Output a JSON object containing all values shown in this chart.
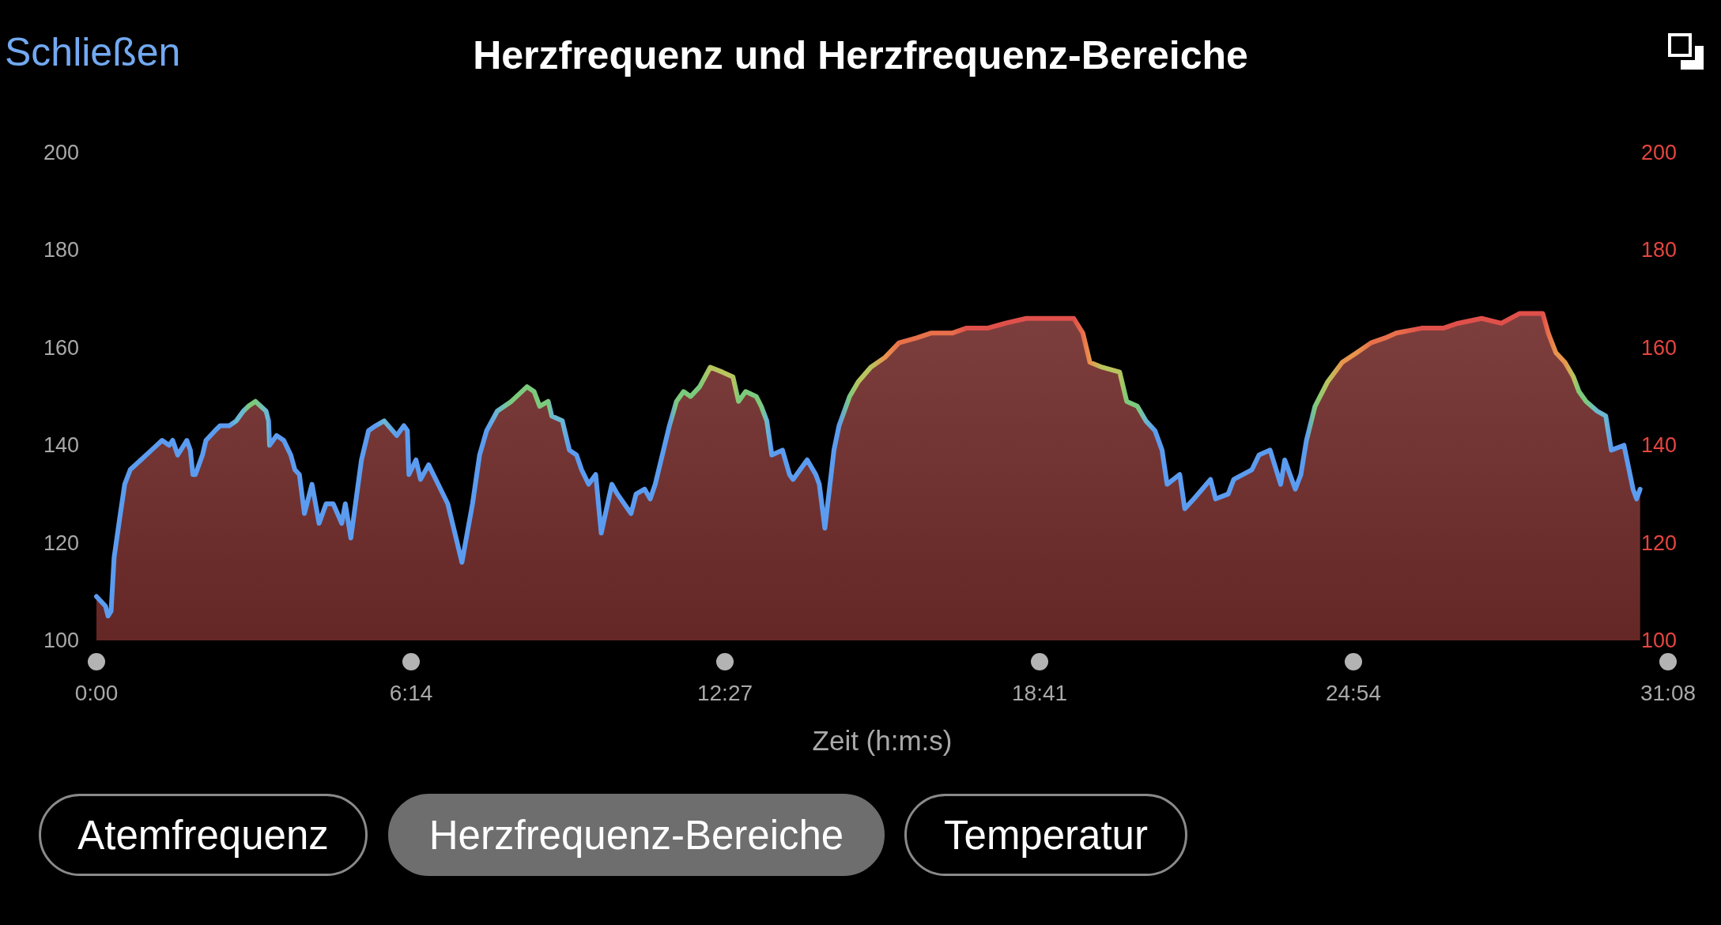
{
  "chart_data": {
    "type": "area",
    "title": "Herzfrequenz und Herzfrequenz-Bereiche",
    "xlabel": "Zeit (h:m:s)",
    "x": [
      0,
      0.18,
      0.23,
      0.29,
      0.35,
      0.46,
      0.56,
      0.67,
      0.88,
      1.09,
      1.3,
      1.44,
      1.51,
      1.61,
      1.79,
      1.86,
      1.91,
      1.96,
      2.1,
      2.17,
      2.35,
      2.45,
      2.63,
      2.77,
      2.91,
      3.01,
      3.15,
      3.36,
      3.41,
      3.43,
      3.57,
      3.71,
      3.85,
      3.93,
      4.02,
      4.12,
      4.27,
      4.41,
      4.55,
      4.69,
      4.86,
      4.93,
      5.04,
      5.25,
      5.39,
      5.53,
      5.7,
      5.95,
      6.09,
      6.16,
      6.19,
      6.33,
      6.42,
      6.58,
      6.96,
      7.1,
      7.24,
      7.45,
      7.59,
      7.73,
      7.94,
      8.22,
      8.53,
      8.67,
      8.78,
      8.95,
      9.02,
      9.23,
      9.37,
      9.51,
      9.61,
      9.75,
      9.89,
      10,
      10.21,
      10.32,
      10.59,
      10.69,
      10.86,
      10.97,
      11.07,
      11.21,
      11.35,
      11.49,
      11.63,
      11.77,
      11.95,
      12.16,
      12.4,
      12.61,
      12.72,
      12.86,
      13.07,
      13.17,
      13.28,
      13.38,
      13.59,
      13.73,
      13.8,
      14.08,
      14.25,
      14.32,
      14.43,
      14.61,
      14.71,
      14.92,
      15.09,
      15.34,
      15.62,
      15.9,
      16.25,
      16.53,
      16.95,
      17.23,
      17.65,
      18,
      18.42,
      18.91,
      19.36,
      19.54,
      19.68,
      19.92,
      20.27,
      20.41,
      20.62,
      20.79,
      20.97,
      21.11,
      21.21,
      21.46,
      21.56,
      21.74,
      22.07,
      22.17,
      22.42,
      22.53,
      22.89,
      23.03,
      23.25,
      23.46,
      23.54,
      23.75,
      23.86,
      23.97,
      24.14,
      24.39,
      24.68,
      24.97,
      25.25,
      25.53,
      25.75,
      26.25,
      26.68,
      26.97,
      27.44,
      27.83,
      28.19,
      28.65,
      28.76,
      28.91,
      29.09,
      29.26,
      29.37,
      29.51,
      29.73,
      29.9,
      30.01,
      30.26,
      30.44,
      30.51,
      30.58
    ],
    "xlim": [
      0,
      31.1333
    ],
    "xticks": [
      {
        "value": 0,
        "label": "0:00"
      },
      {
        "value": 6.2333,
        "label": "6:14"
      },
      {
        "value": 12.45,
        "label": "12:27"
      },
      {
        "value": 18.6833,
        "label": "18:41"
      },
      {
        "value": 24.9,
        "label": "24:54"
      },
      {
        "value": 31.1333,
        "label": "31:08"
      }
    ],
    "ylim": [
      100,
      200
    ],
    "yticks": [
      100,
      120,
      140,
      160,
      180,
      200
    ],
    "y2lim": [
      100,
      200
    ],
    "y2ticks": [
      100,
      120,
      140,
      160,
      180,
      200
    ],
    "series": [
      {
        "color": "#6e2a28",
        "values": [
          109,
          107,
          105,
          106,
          117,
          125,
          132,
          135,
          137,
          139,
          141,
          140,
          141,
          138,
          141,
          139,
          134,
          134,
          138,
          141,
          143,
          144,
          144,
          145,
          147,
          148,
          149,
          147,
          145,
          140,
          142,
          141,
          138,
          135,
          134,
          126,
          132,
          124,
          128,
          128,
          124,
          128,
          121,
          137,
          143,
          144,
          145,
          142,
          144,
          143,
          134,
          137,
          133,
          136,
          128,
          122,
          116,
          128,
          138,
          143,
          147,
          149,
          152,
          151,
          148,
          149,
          146,
          145,
          139,
          138,
          135,
          132,
          134,
          122,
          132,
          130,
          126,
          130,
          131,
          129,
          132,
          138,
          144,
          149,
          151,
          150,
          152,
          156,
          155,
          154,
          149,
          151,
          150,
          148,
          145,
          138,
          139,
          134,
          133,
          137,
          134,
          132,
          123,
          139,
          144,
          150,
          153,
          156,
          158,
          161,
          162,
          163,
          163,
          164,
          164,
          165,
          166,
          166,
          166,
          163,
          157,
          156,
          155,
          149,
          148,
          145,
          143,
          139,
          132,
          134,
          127,
          129,
          133,
          129,
          130,
          133,
          135,
          138,
          139,
          132,
          137,
          131,
          134,
          141,
          148,
          153,
          157,
          159,
          161,
          162,
          163,
          164,
          164,
          165,
          166,
          165,
          167,
          167,
          163,
          159,
          157,
          154,
          151,
          149,
          147,
          146,
          139,
          140,
          131,
          129,
          131
        ],
        "colors": [
          "#5b9cf0",
          "#5b9cf0",
          "#5b9cf0",
          "#5b9cf0",
          "#5b9cf0",
          "#5b9cf0",
          "#5b9cf0",
          "#5b9cf0",
          "#5b9cf0",
          "#5b9cf0",
          "#5b9cf0",
          "#5b9cf0",
          "#5b9cf0",
          "#5b9cf0",
          "#5b9cf0",
          "#5b9cf0",
          "#5b9cf0",
          "#5b9cf0",
          "#5b9cf0",
          "#5b9cf0",
          "#5b9cf0",
          "#5b9cf0",
          "#5b9cf0",
          "#6ab8d2",
          "#6ab8d2",
          "#7cca7c",
          "#7cca7c",
          "#6ab8d2",
          "#6ab8d2",
          "#5b9cf0",
          "#5b9cf0",
          "#5b9cf0",
          "#5b9cf0",
          "#5b9cf0",
          "#5b9cf0",
          "#5b9cf0",
          "#5b9cf0",
          "#5b9cf0",
          "#5b9cf0",
          "#5b9cf0",
          "#5b9cf0",
          "#5b9cf0",
          "#5b9cf0",
          "#5b9cf0",
          "#5b9cf0",
          "#5b9cf0",
          "#6ab8d2",
          "#5b9cf0",
          "#5b9cf0",
          "#5b9cf0",
          "#5b9cf0",
          "#5b9cf0",
          "#5b9cf0",
          "#5b9cf0",
          "#5b9cf0",
          "#5b9cf0",
          "#5b9cf0",
          "#5b9cf0",
          "#5b9cf0",
          "#5b9cf0",
          "#6ab8d2",
          "#7cca7c",
          "#7cca7c",
          "#7cca7c",
          "#7cca7c",
          "#7cca7c",
          "#6ab8d2",
          "#6ab8d2",
          "#5b9cf0",
          "#5b9cf0",
          "#5b9cf0",
          "#5b9cf0",
          "#5b9cf0",
          "#5b9cf0",
          "#5b9cf0",
          "#5b9cf0",
          "#5b9cf0",
          "#5b9cf0",
          "#5b9cf0",
          "#5b9cf0",
          "#5b9cf0",
          "#5b9cf0",
          "#5b9cf0",
          "#7cca7c",
          "#7cca7c",
          "#7cca7c",
          "#7cca7c",
          "#b9c45e",
          "#b9c45e",
          "#b9c45e",
          "#7cca7c",
          "#7cca7c",
          "#7cca7c",
          "#7cca7c",
          "#6ab8d2",
          "#5b9cf0",
          "#5b9cf0",
          "#5b9cf0",
          "#5b9cf0",
          "#5b9cf0",
          "#5b9cf0",
          "#5b9cf0",
          "#5b9cf0",
          "#5b9cf0",
          "#5b9cf0",
          "#7cca7c",
          "#b9c45e",
          "#b9c45e",
          "#e8944c",
          "#e8704a",
          "#e8704a",
          "#e8704a",
          "#e8704a",
          "#e0504a",
          "#e0504a",
          "#e0504a",
          "#e0504a",
          "#e0504a",
          "#e0504a",
          "#e8704a",
          "#e8944c",
          "#b9c45e",
          "#b9c45e",
          "#7cca7c",
          "#7cca7c",
          "#6ab8d2",
          "#5b9cf0",
          "#5b9cf0",
          "#5b9cf0",
          "#5b9cf0",
          "#5b9cf0",
          "#5b9cf0",
          "#5b9cf0",
          "#5b9cf0",
          "#5b9cf0",
          "#5b9cf0",
          "#5b9cf0",
          "#5b9cf0",
          "#5b9cf0",
          "#5b9cf0",
          "#5b9cf0",
          "#5b9cf0",
          "#5b9cf0",
          "#5b9cf0",
          "#7cca7c",
          "#b9c45e",
          "#e8944c",
          "#e8944c",
          "#e8704a",
          "#e8704a",
          "#e8704a",
          "#e0504a",
          "#e0504a",
          "#e0504a",
          "#e0504a",
          "#e0504a",
          "#e0504a",
          "#e0504a",
          "#e8704a",
          "#e8944c",
          "#e8944c",
          "#b9c45e",
          "#7cca7c",
          "#7cca7c",
          "#6ab8d2",
          "#6ab8d2",
          "#5b9cf0",
          "#5b9cf0",
          "#5b9cf0",
          "#5b9cf0",
          "#5b9cf0"
        ]
      }
    ],
    "annotations": [
      "Schließen",
      "Atemfrequenz",
      "Herzfrequenz-Bereiche",
      "Temperatur"
    ]
  }
}
